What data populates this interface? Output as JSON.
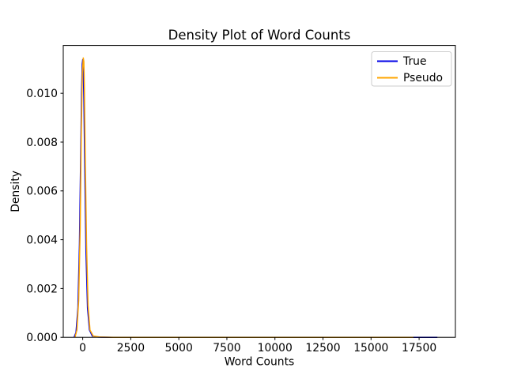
{
  "figure": {
    "background": "#ffffff",
    "text_color": "#000000",
    "spine_color": "#000000"
  },
  "chart_data": {
    "type": "line",
    "title": "Density Plot of Word Counts",
    "xlabel": "Word Counts",
    "ylabel": "Density",
    "xlim": [
      -1012,
      19388
    ],
    "ylim": [
      0,
      0.01196
    ],
    "grid": false,
    "xticks": {
      "values": [
        0,
        2500,
        5000,
        7500,
        10000,
        12500,
        15000,
        17500
      ],
      "labels": [
        "0",
        "2500",
        "5000",
        "7500",
        "10000",
        "12500",
        "15000",
        "17500"
      ]
    },
    "yticks": {
      "values": [
        0,
        0.002,
        0.004,
        0.006,
        0.008,
        0.01
      ],
      "labels": [
        "0.000",
        "0.002",
        "0.004",
        "0.006",
        "0.008",
        "0.010"
      ]
    },
    "legend": {
      "position": "upper right",
      "entries": [
        {
          "label": "True",
          "color": "#0000e6"
        },
        {
          "label": "Pseudo",
          "color": "#ffa500"
        }
      ]
    },
    "series": [
      {
        "name": "True",
        "color": "#0000e6",
        "x": [
          -450,
          -350,
          -250,
          -170,
          -110,
          -60,
          -25,
          0,
          25,
          60,
          110,
          170,
          250,
          350,
          500,
          800,
          1500,
          5000,
          10000,
          15000,
          18450
        ],
        "y": [
          0,
          0.0002,
          0.0012,
          0.0038,
          0.0072,
          0.01,
          0.0112,
          0.01138,
          0.0111,
          0.0098,
          0.0068,
          0.0035,
          0.0012,
          0.0003,
          5e-05,
          1e-05,
          0,
          0,
          0,
          0,
          0
        ]
      },
      {
        "name": "Pseudo",
        "color": "#ffa500",
        "x": [
          -400,
          -300,
          -210,
          -130,
          -70,
          -20,
          30,
          60,
          90,
          140,
          200,
          280,
          380,
          550,
          900,
          1600,
          5000,
          10000,
          17200
        ],
        "y": [
          0,
          0.0003,
          0.0015,
          0.0045,
          0.0085,
          0.0108,
          0.01145,
          0.0113,
          0.0102,
          0.007,
          0.0038,
          0.0013,
          0.0003,
          5e-05,
          1e-05,
          0,
          0,
          0,
          0
        ]
      }
    ]
  }
}
